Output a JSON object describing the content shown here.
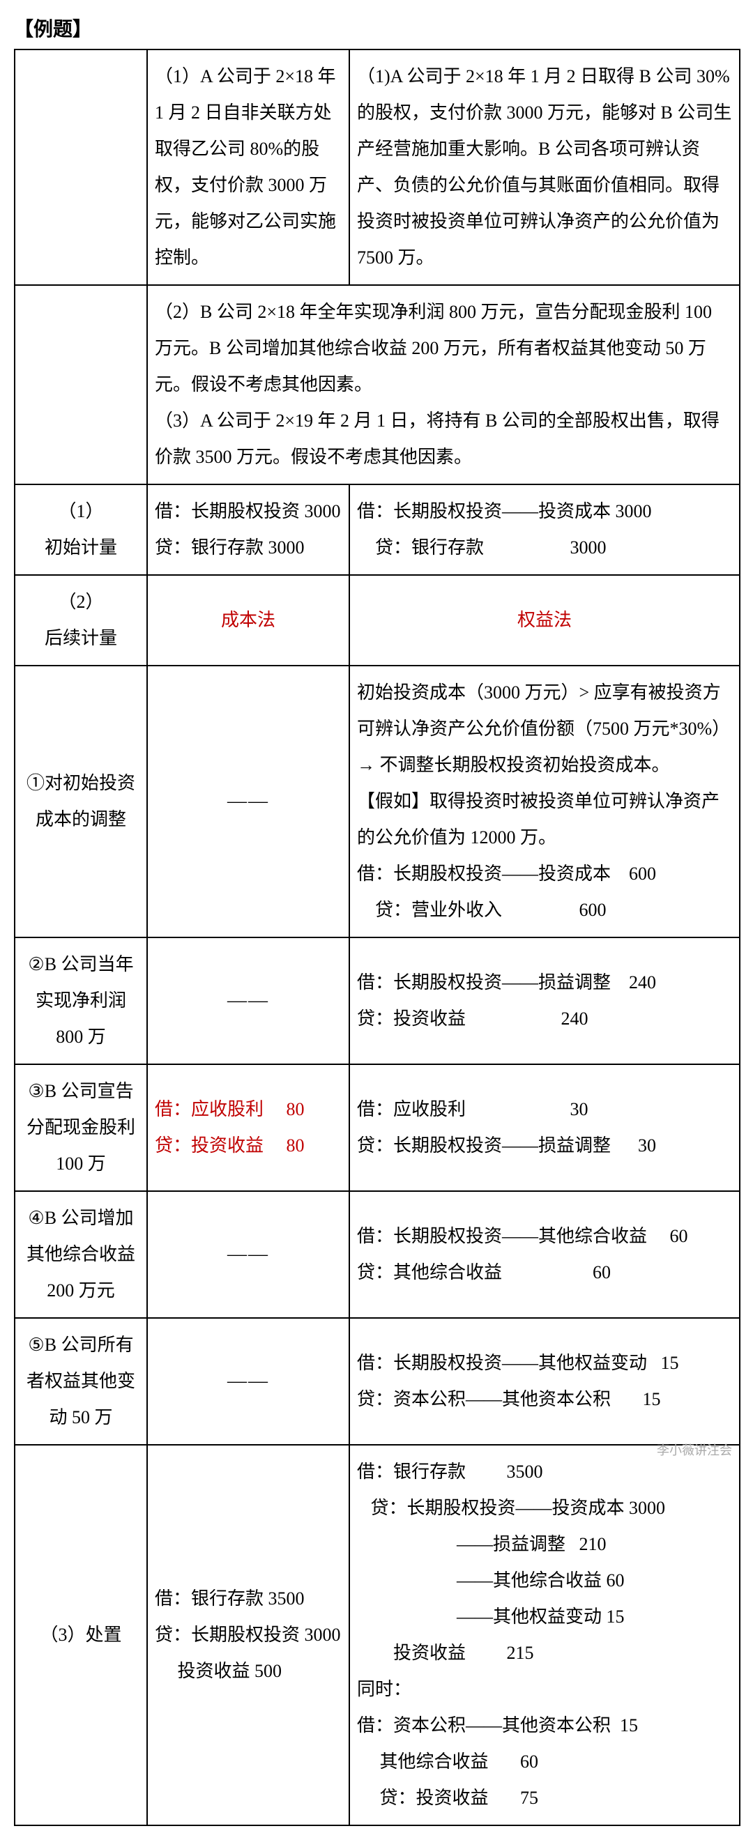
{
  "title": "【例题】",
  "watermark": "李小薇讲注会",
  "row1": {
    "left": "（1）A 公司于 2×18 年 1 月 2 日自非关联方处取得乙公司 80%的股权，支付价款 3000 万元，能够对乙公司实施控制。",
    "right": "（1)A 公司于 2×18 年 1 月 2 日取得 B 公司 30%的股权，支付价款 3000 万元，能够对 B 公司生产经营施加重大影响。B 公司各项可辨认资产、负债的公允价值与其账面价值相同。取得投资时被投资单位可辨认净资产的公允价值为 7500 万。"
  },
  "row2": "（2）B 公司 2×18 年全年实现净利润 800 万元，宣告分配现金股利 100 万元。B 公司增加其他综合收益 200 万元，所有者权益其他变动 50 万元。假设不考虑其他因素。\n（3）A 公司于 2×19 年 2 月 1 日，将持有 B 公司的全部股权出售，取得价款 3500 万元。假设不考虑其他因素。",
  "initLabel": "（1）\n初始计量",
  "initLeft": "借：长期股权投资 3000\n贷：银行存款 3000",
  "initRight": "借：长期股权投资——投资成本 3000\n    贷：银行存款                   3000",
  "subseqLabel": "（2）\n后续计量",
  "costMethod": "成本法",
  "equityMethod": "权益法",
  "adj1Label": "①对初始投资成本的调整",
  "adj1Right": "初始投资成本（3000 万元）> 应享有被投资方可辨认净资产公允价值份额（7500 万元*30%）→ 不调整长期股权投资初始投资成本。\n【假如】取得投资时被投资单位可辨认净资产的公允价值为 12000 万。\n借：长期股权投资——投资成本    600\n    贷：营业外收入                 600",
  "profitLabel": "②B 公司当年实现净利润 800 万",
  "profitRight": "借：长期股权投资——损益调整    240\n贷：投资收益                     240",
  "dividendLabel": "③B 公司宣告分配现金股利 100 万",
  "dividendLeft1": "借：应收股利     80",
  "dividendLeft2": "贷：投资收益     80",
  "dividendRight": "借：应收股利                       30\n贷：长期股权投资——损益调整      30",
  "ociLabel": "④B 公司增加其他综合收益 200 万元",
  "ociRight": "借：长期股权投资——其他综合收益     60\n贷：其他综合收益                    60",
  "otherLabel": "⑤B 公司所有者权益其他变动 50 万",
  "otherRight": "借：长期股权投资——其他权益变动   15\n贷：资本公积——其他资本公积       15",
  "disposalLabel": "（3）处置",
  "disposalLeft": "借：银行存款 3500\n贷：长期股权投资 3000\n     投资收益 500",
  "disposalRight": "借：银行存款         3500\n   贷：长期股权投资——投资成本 3000\n                      ——损益调整   210\n                      ——其他综合收益 60\n                      ——其他权益变动 15\n        投资收益         215\n同时：\n借：资本公积——其他资本公积  15\n     其他综合收益       60\n     贷：投资收益       75",
  "dash": "——",
  "colors": {
    "red": "#c00000",
    "border": "#000000",
    "text": "#000000"
  }
}
